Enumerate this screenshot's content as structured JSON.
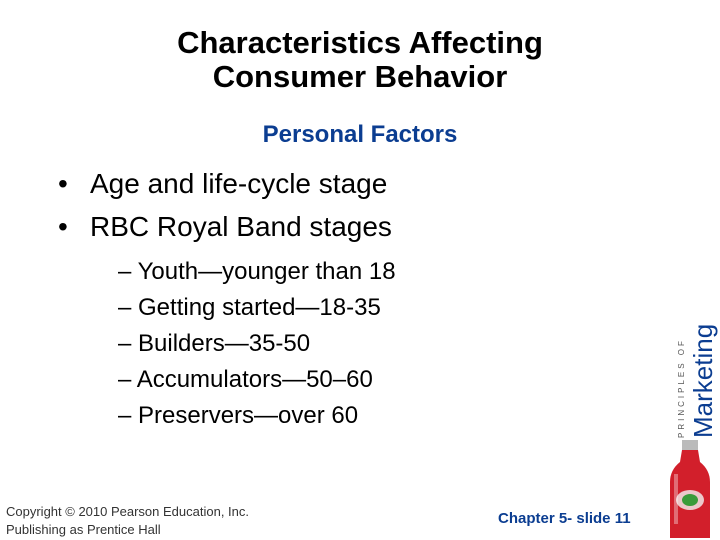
{
  "slide": {
    "title_line1": "Characteristics Affecting",
    "title_line2": "Consumer Behavior",
    "subtitle": "Personal Factors",
    "bullets": [
      "Age and life-cycle stage",
      "RBC Royal Band stages"
    ],
    "bullet_marker": "•",
    "sub_bullets": [
      "– Youth—younger than 18",
      "– Getting started—18-35",
      "– Builders—35-50",
      "– Accumulators—50–60",
      "– Preservers—over 60"
    ],
    "copyright_line1": "Copyright © 2010 Pearson Education, Inc.",
    "copyright_line2": "Publishing as Prentice Hall",
    "slide_number": "Chapter 5- slide 11"
  },
  "brand": {
    "top_text": "PRINCIPLES OF",
    "main_text": "Marketing",
    "accent_color": "#0b3d91",
    "bottle_color": "#d21f2b"
  }
}
